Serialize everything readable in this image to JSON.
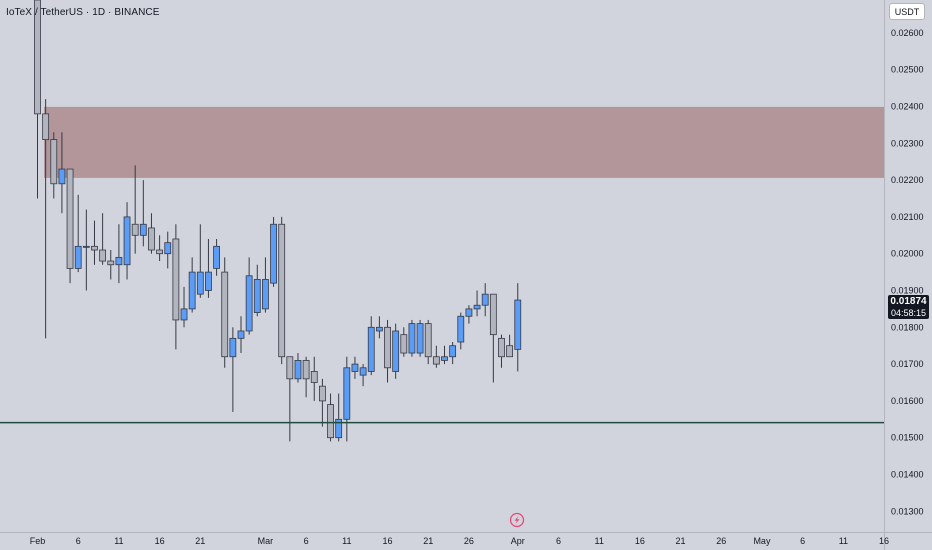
{
  "header": {
    "symbol_title": "IoTeX / TetherUS · 1D · BINANCE"
  },
  "price_axis": {
    "currency": "USDT"
  },
  "last_price": {
    "value": "0.01874",
    "countdown": "04:58:15"
  },
  "colors": {
    "background": "#d1d4dc",
    "up_candle": "#5b9cf6",
    "down_candle": "#b2b5be",
    "candle_outline": "#363a45",
    "supply_zone": "#b2969a",
    "support_line": "#1e4d3c",
    "axis_text": "#131722"
  },
  "chart_data": {
    "type": "candlestick",
    "title": "IoTeX / TetherUS · 1D · BINANCE",
    "y_axis": {
      "side": "right",
      "range": [
        0.0126,
        0.0266
      ],
      "ticks": [
        "0.02600",
        "0.02500",
        "0.02400",
        "0.02300",
        "0.02200",
        "0.02100",
        "0.02000",
        "0.01900",
        "0.01800",
        "0.01700",
        "0.01600",
        "0.01500",
        "0.01400",
        "0.01300"
      ]
    },
    "x_axis": {
      "labels": [
        "Feb",
        "6",
        "11",
        "16",
        "21",
        "Mar",
        "6",
        "11",
        "16",
        "21",
        "26",
        "Apr",
        "6",
        "11",
        "16",
        "21",
        "26",
        "May",
        "6",
        "11",
        "16"
      ],
      "range_days": [
        0,
        106
      ],
      "start": "Feb 1"
    },
    "annotations": {
      "supply_zone": {
        "from": 0.02206,
        "to": 0.02399
      },
      "support_line": 0.01541
    },
    "candles": [
      {
        "date": "Feb 1",
        "o": 0.0277,
        "h": 0.0277,
        "l": 0.0215,
        "c": 0.0238
      },
      {
        "date": "Feb 2",
        "o": 0.0238,
        "h": 0.0242,
        "l": 0.0177,
        "c": 0.0231
      },
      {
        "date": "Feb 3",
        "o": 0.0231,
        "h": 0.0233,
        "l": 0.0215,
        "c": 0.0219
      },
      {
        "date": "Feb 4",
        "o": 0.0219,
        "h": 0.0233,
        "l": 0.0211,
        "c": 0.0223
      },
      {
        "date": "Feb 5",
        "o": 0.0223,
        "h": 0.0223,
        "l": 0.0192,
        "c": 0.0196
      },
      {
        "date": "Feb 6",
        "o": 0.0196,
        "h": 0.0216,
        "l": 0.0195,
        "c": 0.0202
      },
      {
        "date": "Feb 7",
        "o": 0.0202,
        "h": 0.0212,
        "l": 0.019,
        "c": 0.0202
      },
      {
        "date": "Feb 8",
        "o": 0.0202,
        "h": 0.0209,
        "l": 0.0197,
        "c": 0.0201
      },
      {
        "date": "Feb 9",
        "o": 0.0201,
        "h": 0.0211,
        "l": 0.0197,
        "c": 0.0198
      },
      {
        "date": "Feb 10",
        "o": 0.0198,
        "h": 0.0201,
        "l": 0.0193,
        "c": 0.0197
      },
      {
        "date": "Feb 11",
        "o": 0.0197,
        "h": 0.0208,
        "l": 0.0192,
        "c": 0.0199
      },
      {
        "date": "Feb 12",
        "o": 0.0197,
        "h": 0.0214,
        "l": 0.0193,
        "c": 0.021
      },
      {
        "date": "Feb 13",
        "o": 0.0208,
        "h": 0.0224,
        "l": 0.02,
        "c": 0.0205
      },
      {
        "date": "Feb 14",
        "o": 0.0205,
        "h": 0.022,
        "l": 0.0202,
        "c": 0.0208
      },
      {
        "date": "Feb 15",
        "o": 0.0207,
        "h": 0.0211,
        "l": 0.02,
        "c": 0.0201
      },
      {
        "date": "Feb 16",
        "o": 0.0201,
        "h": 0.0205,
        "l": 0.0198,
        "c": 0.02
      },
      {
        "date": "Feb 17",
        "o": 0.02,
        "h": 0.0206,
        "l": 0.0196,
        "c": 0.0203
      },
      {
        "date": "Feb 18",
        "o": 0.0204,
        "h": 0.0208,
        "l": 0.0174,
        "c": 0.0182
      },
      {
        "date": "Feb 19",
        "o": 0.0182,
        "h": 0.0191,
        "l": 0.018,
        "c": 0.0185
      },
      {
        "date": "Feb 20",
        "o": 0.0185,
        "h": 0.0199,
        "l": 0.0184,
        "c": 0.0195
      },
      {
        "date": "Feb 21",
        "o": 0.0189,
        "h": 0.0208,
        "l": 0.0188,
        "c": 0.0195
      },
      {
        "date": "Feb 22",
        "o": 0.019,
        "h": 0.0204,
        "l": 0.0188,
        "c": 0.0195
      },
      {
        "date": "Feb 23",
        "o": 0.0196,
        "h": 0.0204,
        "l": 0.0194,
        "c": 0.0202
      },
      {
        "date": "Feb 24",
        "o": 0.0195,
        "h": 0.0199,
        "l": 0.0169,
        "c": 0.0172
      },
      {
        "date": "Feb 25",
        "o": 0.0172,
        "h": 0.018,
        "l": 0.0157,
        "c": 0.0177
      },
      {
        "date": "Feb 26",
        "o": 0.0177,
        "h": 0.0183,
        "l": 0.0173,
        "c": 0.0179
      },
      {
        "date": "Feb 27",
        "o": 0.0179,
        "h": 0.0199,
        "l": 0.0178,
        "c": 0.0194
      },
      {
        "date": "Feb 28",
        "o": 0.0184,
        "h": 0.0197,
        "l": 0.0183,
        "c": 0.0193
      },
      {
        "date": "Mar 1",
        "o": 0.0185,
        "h": 0.0199,
        "l": 0.0184,
        "c": 0.0193
      },
      {
        "date": "Mar 2",
        "o": 0.0192,
        "h": 0.021,
        "l": 0.0191,
        "c": 0.0208
      },
      {
        "date": "Mar 3",
        "o": 0.0208,
        "h": 0.021,
        "l": 0.017,
        "c": 0.0172
      },
      {
        "date": "Mar 4",
        "o": 0.0172,
        "h": 0.0172,
        "l": 0.0149,
        "c": 0.0166
      },
      {
        "date": "Mar 5",
        "o": 0.0166,
        "h": 0.0173,
        "l": 0.0165,
        "c": 0.0171
      },
      {
        "date": "Mar 6",
        "o": 0.0171,
        "h": 0.0172,
        "l": 0.0161,
        "c": 0.0166
      },
      {
        "date": "Mar 7",
        "o": 0.0168,
        "h": 0.0172,
        "l": 0.016,
        "c": 0.0165
      },
      {
        "date": "Mar 8",
        "o": 0.0164,
        "h": 0.0166,
        "l": 0.0153,
        "c": 0.016
      },
      {
        "date": "Mar 9",
        "o": 0.0159,
        "h": 0.0162,
        "l": 0.0149,
        "c": 0.015
      },
      {
        "date": "Mar 10",
        "o": 0.015,
        "h": 0.0162,
        "l": 0.0149,
        "c": 0.0155
      },
      {
        "date": "Mar 11",
        "o": 0.0155,
        "h": 0.0172,
        "l": 0.0149,
        "c": 0.0169
      },
      {
        "date": "Mar 12",
        "o": 0.0168,
        "h": 0.0172,
        "l": 0.0166,
        "c": 0.017
      },
      {
        "date": "Mar 13",
        "o": 0.0167,
        "h": 0.017,
        "l": 0.0164,
        "c": 0.0169
      },
      {
        "date": "Mar 14",
        "o": 0.0168,
        "h": 0.0183,
        "l": 0.0167,
        "c": 0.018
      },
      {
        "date": "Mar 15",
        "o": 0.0179,
        "h": 0.0183,
        "l": 0.0177,
        "c": 0.018
      },
      {
        "date": "Mar 16",
        "o": 0.018,
        "h": 0.0182,
        "l": 0.0165,
        "c": 0.0169
      },
      {
        "date": "Mar 17",
        "o": 0.0168,
        "h": 0.0181,
        "l": 0.0166,
        "c": 0.0179
      },
      {
        "date": "Mar 18",
        "o": 0.0178,
        "h": 0.018,
        "l": 0.0172,
        "c": 0.0173
      },
      {
        "date": "Mar 19",
        "o": 0.0173,
        "h": 0.0182,
        "l": 0.0172,
        "c": 0.0181
      },
      {
        "date": "Mar 20",
        "o": 0.0173,
        "h": 0.0182,
        "l": 0.0172,
        "c": 0.0181
      },
      {
        "date": "Mar 21",
        "o": 0.0181,
        "h": 0.0182,
        "l": 0.017,
        "c": 0.0172
      },
      {
        "date": "Mar 22",
        "o": 0.0172,
        "h": 0.0175,
        "l": 0.0169,
        "c": 0.017
      },
      {
        "date": "Mar 23",
        "o": 0.0171,
        "h": 0.0175,
        "l": 0.017,
        "c": 0.0172
      },
      {
        "date": "Mar 24",
        "o": 0.0172,
        "h": 0.0176,
        "l": 0.017,
        "c": 0.0175
      },
      {
        "date": "Mar 25",
        "o": 0.0176,
        "h": 0.0184,
        "l": 0.0174,
        "c": 0.0183
      },
      {
        "date": "Mar 26",
        "o": 0.0183,
        "h": 0.0186,
        "l": 0.0181,
        "c": 0.0185
      },
      {
        "date": "Mar 27",
        "o": 0.0185,
        "h": 0.019,
        "l": 0.0183,
        "c": 0.0186
      },
      {
        "date": "Mar 28",
        "o": 0.0186,
        "h": 0.0192,
        "l": 0.0183,
        "c": 0.0189
      },
      {
        "date": "Mar 29",
        "o": 0.0189,
        "h": 0.0189,
        "l": 0.0165,
        "c": 0.0178
      },
      {
        "date": "Mar 30",
        "o": 0.0177,
        "h": 0.0178,
        "l": 0.0169,
        "c": 0.0172
      },
      {
        "date": "Mar 31",
        "o": 0.0175,
        "h": 0.0178,
        "l": 0.0172,
        "c": 0.0172
      },
      {
        "date": "Apr 1",
        "o": 0.0174,
        "h": 0.0192,
        "l": 0.0168,
        "c": 0.01874
      }
    ]
  }
}
